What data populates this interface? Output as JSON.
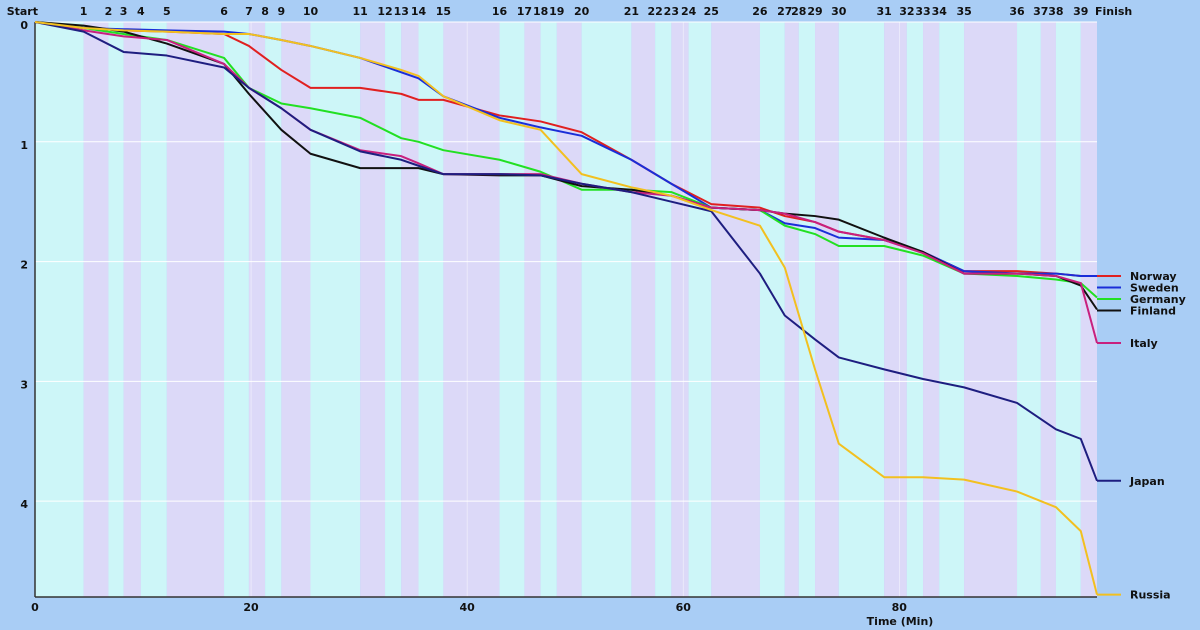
{
  "chart_data": {
    "type": "line",
    "x_label": "Time (Min)",
    "xlim": [
      0,
      98.3
    ],
    "xticks": [
      0,
      20,
      40,
      60,
      80
    ],
    "ylim": [
      0,
      4.8
    ],
    "yticks": [
      0,
      1,
      2,
      3,
      4
    ],
    "y_inverted": true,
    "grid": true,
    "band_colors": [
      "#cdf6f8",
      "#dcd9f8"
    ],
    "checkpoints": [
      {
        "value": 0,
        "label": "Start"
      },
      {
        "value": 4.5,
        "label": "1"
      },
      {
        "value": 6.8,
        "label": "2"
      },
      {
        "value": 8.2,
        "label": "3"
      },
      {
        "value": 9.8,
        "label": "4"
      },
      {
        "value": 12.2,
        "label": "5"
      },
      {
        "value": 17.5,
        "label": "6"
      },
      {
        "value": 19.8,
        "label": "7"
      },
      {
        "value": 21.3,
        "label": "8"
      },
      {
        "value": 22.8,
        "label": "9"
      },
      {
        "value": 25.5,
        "label": "10"
      },
      {
        "value": 30.1,
        "label": "11"
      },
      {
        "value": 32.4,
        "label": "12"
      },
      {
        "value": 33.9,
        "label": "13"
      },
      {
        "value": 35.5,
        "label": "14"
      },
      {
        "value": 37.8,
        "label": "15"
      },
      {
        "value": 43,
        "label": "16"
      },
      {
        "value": 45.3,
        "label": "17"
      },
      {
        "value": 46.8,
        "label": "18"
      },
      {
        "value": 48.3,
        "label": "19"
      },
      {
        "value": 50.6,
        "label": "20"
      },
      {
        "value": 55.2,
        "label": "21"
      },
      {
        "value": 57.4,
        "label": "22"
      },
      {
        "value": 58.9,
        "label": "23"
      },
      {
        "value": 60.5,
        "label": "24"
      },
      {
        "value": 62.6,
        "label": "25"
      },
      {
        "value": 67.1,
        "label": "26"
      },
      {
        "value": 69.4,
        "label": "27"
      },
      {
        "value": 70.7,
        "label": "28"
      },
      {
        "value": 72.2,
        "label": "29"
      },
      {
        "value": 74.4,
        "label": "30"
      },
      {
        "value": 78.6,
        "label": "31"
      },
      {
        "value": 80.7,
        "label": "32"
      },
      {
        "value": 82.2,
        "label": "33"
      },
      {
        "value": 83.7,
        "label": "34"
      },
      {
        "value": 86,
        "label": "35"
      },
      {
        "value": 90.9,
        "label": "36"
      },
      {
        "value": 93.1,
        "label": "37"
      },
      {
        "value": 94.5,
        "label": "38"
      },
      {
        "value": 96.8,
        "label": "39"
      },
      {
        "value": 98.3,
        "label": "Finish"
      }
    ],
    "x": [
      0,
      4.5,
      8.2,
      12.2,
      17.5,
      19.8,
      22.8,
      25.5,
      30.1,
      33.9,
      35.5,
      37.8,
      43,
      46.8,
      50.6,
      55.2,
      58.9,
      62.6,
      67.1,
      69.4,
      72.2,
      74.4,
      78.6,
      82.2,
      86,
      90.9,
      94.5,
      96.8,
      98.3
    ],
    "series": [
      {
        "name": "Norway",
        "color": "#e02020",
        "values": [
          0,
          0.05,
          0.07,
          0.08,
          0.1,
          0.2,
          0.4,
          0.55,
          0.55,
          0.6,
          0.65,
          0.65,
          0.78,
          0.83,
          0.92,
          1.15,
          1.35,
          1.52,
          1.55,
          1.62,
          1.67,
          1.75,
          1.82,
          1.92,
          2.08,
          2.08,
          2.1,
          2.12,
          2.12
        ]
      },
      {
        "name": "Sweden",
        "color": "#1a2ed8",
        "values": [
          0,
          0.05,
          0.06,
          0.07,
          0.08,
          0.1,
          0.15,
          0.2,
          0.3,
          0.42,
          0.47,
          0.62,
          0.8,
          0.88,
          0.95,
          1.15,
          1.35,
          1.55,
          1.57,
          1.68,
          1.72,
          1.8,
          1.82,
          1.92,
          2.08,
          2.1,
          2.1,
          2.12,
          2.12
        ]
      },
      {
        "name": "Germany",
        "color": "#22e022",
        "values": [
          0,
          0.05,
          0.1,
          0.15,
          0.3,
          0.55,
          0.68,
          0.72,
          0.8,
          0.97,
          1.0,
          1.07,
          1.15,
          1.25,
          1.4,
          1.4,
          1.42,
          1.55,
          1.57,
          1.7,
          1.77,
          1.87,
          1.87,
          1.95,
          2.1,
          2.12,
          2.15,
          2.18,
          2.3
        ]
      },
      {
        "name": "Finland",
        "color": "#111111",
        "values": [
          0,
          0.03,
          0.08,
          0.18,
          0.35,
          0.6,
          0.9,
          1.1,
          1.22,
          1.22,
          1.22,
          1.27,
          1.28,
          1.28,
          1.37,
          1.4,
          1.45,
          1.55,
          1.57,
          1.6,
          1.62,
          1.65,
          1.8,
          1.92,
          2.1,
          2.1,
          2.12,
          2.2,
          2.4
        ]
      },
      {
        "name": "Italy",
        "color": "#c8207e",
        "values": [
          0,
          0.07,
          0.12,
          0.15,
          0.35,
          0.55,
          0.72,
          0.9,
          1.07,
          1.12,
          1.18,
          1.27,
          1.27,
          1.27,
          1.35,
          1.42,
          1.45,
          1.55,
          1.57,
          1.6,
          1.67,
          1.75,
          1.82,
          1.93,
          2.1,
          2.1,
          2.12,
          2.18,
          2.68
        ]
      },
      {
        "name": "Japan",
        "color": "#1e1e80",
        "values": [
          0,
          0.08,
          0.25,
          0.28,
          0.38,
          0.55,
          0.72,
          0.9,
          1.08,
          1.15,
          1.2,
          1.27,
          1.27,
          1.28,
          1.35,
          1.42,
          1.5,
          1.58,
          2.1,
          2.45,
          2.65,
          2.8,
          2.9,
          2.98,
          3.05,
          3.18,
          3.4,
          3.48,
          3.83
        ]
      },
      {
        "name": "Russia",
        "color": "#f2c020",
        "values": [
          0,
          0.05,
          0.07,
          0.08,
          0.1,
          0.1,
          0.15,
          0.2,
          0.3,
          0.4,
          0.45,
          0.62,
          0.82,
          0.9,
          1.27,
          1.38,
          1.45,
          1.57,
          1.7,
          2.05,
          2.9,
          3.52,
          3.8,
          3.8,
          3.82,
          3.92,
          4.05,
          4.25,
          4.78
        ]
      }
    ]
  }
}
